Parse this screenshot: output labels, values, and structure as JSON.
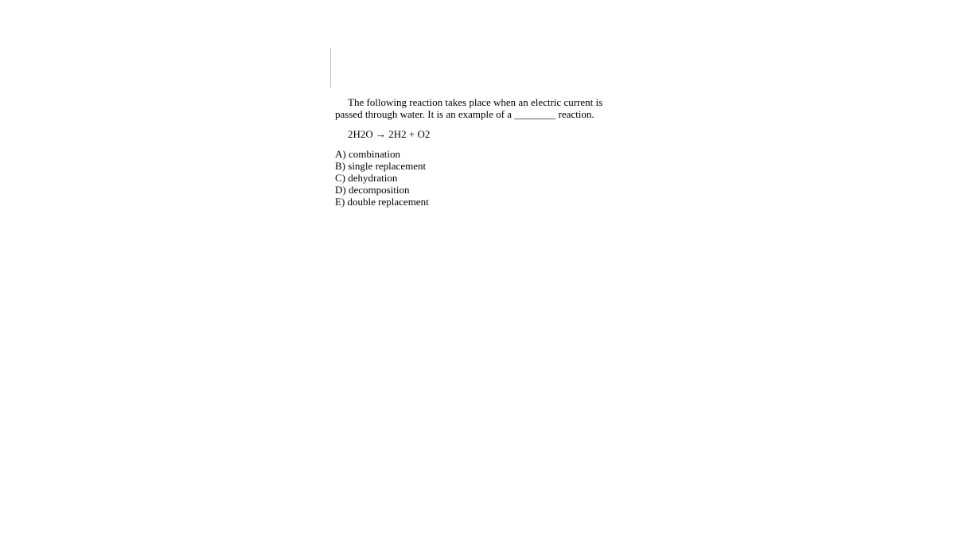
{
  "background_color": "#ffffff",
  "text_color": "#000000",
  "font_family": "Times New Roman, serif",
  "font_size_pt": 10,
  "question": {
    "prompt": "The following reaction takes place when an electric current is passed through water. It is an example of a ________ reaction.",
    "equation": "2H2O → 2H2 + O2",
    "options": [
      {
        "label": "A",
        "text": "combination"
      },
      {
        "label": "B",
        "text": "single replacement"
      },
      {
        "label": "C",
        "text": "dehydration"
      },
      {
        "label": "D",
        "text": "decomposition"
      },
      {
        "label": "E",
        "text": "double replacement"
      }
    ]
  },
  "rule_color": "#bdbdbd"
}
